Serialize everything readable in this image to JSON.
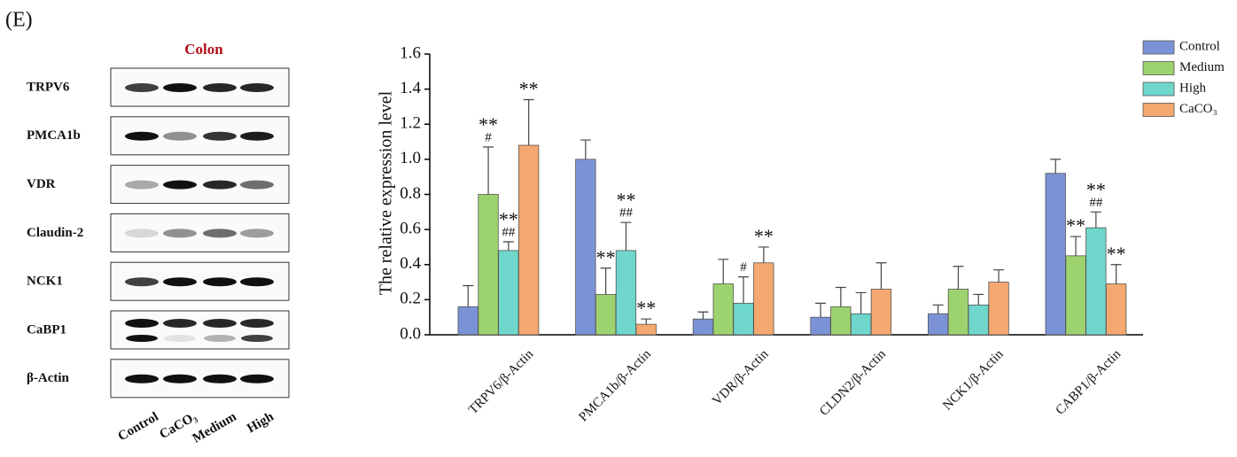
{
  "panel_label": "(E)",
  "blot": {
    "title": "Colon",
    "rows": [
      "TRPV6",
      "PMCA1b",
      "VDR",
      "Claudin-2",
      "NCK1",
      "CaBP1",
      "β-Actin"
    ],
    "lanes": [
      "Control",
      "CaCO₃",
      "Medium",
      "High"
    ]
  },
  "chart_data": {
    "type": "bar",
    "y_label": "The relative expression level",
    "categories": [
      "TRPV6/β-Actin",
      "PMCA1b/β-Actin",
      "VDR/β-Actin",
      "CLDN2/β-Actin",
      "NCK1/β-Actin",
      "CABP1/β-Actin"
    ],
    "series": [
      {
        "name": "Control",
        "color": "#7b93d6",
        "values": [
          0.16,
          1.0,
          0.09,
          0.1,
          0.12,
          0.92
        ],
        "errors": [
          0.12,
          0.11,
          0.04,
          0.08,
          0.05,
          0.08
        ],
        "annotations": [
          null,
          null,
          null,
          null,
          null,
          null
        ]
      },
      {
        "name": "Medium",
        "color": "#9dd36f",
        "values": [
          0.8,
          0.23,
          0.29,
          0.16,
          0.26,
          0.45
        ],
        "errors": [
          0.27,
          0.15,
          0.14,
          0.11,
          0.13,
          0.11
        ],
        "annotations": [
          [
            "**",
            "#"
          ],
          [
            "**"
          ],
          null,
          null,
          null,
          [
            "**"
          ]
        ]
      },
      {
        "name": "High",
        "color": "#6fd6cc",
        "values": [
          0.48,
          0.48,
          0.18,
          0.12,
          0.17,
          0.61
        ],
        "errors": [
          0.05,
          0.16,
          0.15,
          0.12,
          0.06,
          0.09
        ],
        "annotations": [
          [
            "**",
            "##"
          ],
          [
            "**",
            "##"
          ],
          [
            "#"
          ],
          null,
          null,
          [
            "**",
            "##"
          ]
        ]
      },
      {
        "name": "CaCO₃",
        "color": "#f4a86f",
        "values": [
          1.08,
          0.06,
          0.41,
          0.26,
          0.3,
          0.29
        ],
        "errors": [
          0.26,
          0.03,
          0.09,
          0.15,
          0.07,
          0.11
        ],
        "annotations": [
          [
            "**"
          ],
          [
            "**"
          ],
          [
            "**"
          ],
          null,
          null,
          [
            "**"
          ]
        ]
      }
    ],
    "ylim": [
      0,
      1.6
    ],
    "yticks": [
      {
        "value": 0,
        "label": "0.0"
      },
      0.2,
      0.4,
      0.6,
      0.8,
      {
        "value": 1,
        "label": "1.0"
      },
      1.2,
      1.4,
      1.6
    ],
    "legend": "top-right"
  }
}
